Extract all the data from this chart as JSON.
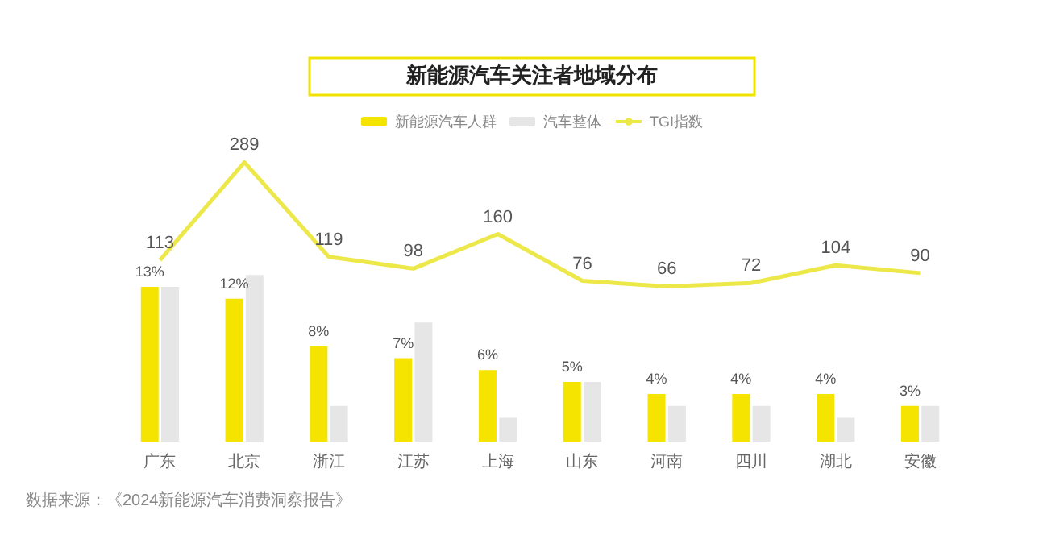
{
  "chart_data": {
    "type": "bar",
    "title": "新能源汽车关注者地域分布",
    "categories": [
      "广东",
      "北京",
      "浙江",
      "江苏",
      "上海",
      "山东",
      "河南",
      "四川",
      "湖北",
      "安徽"
    ],
    "series": [
      {
        "name": "新能源汽车人群",
        "color": "#f5e400",
        "values": [
          13,
          12,
          8,
          7,
          6,
          5,
          4,
          4,
          4,
          3
        ],
        "value_labels": [
          "13%",
          "12%",
          "8%",
          "7%",
          "6%",
          "5%",
          "4%",
          "4%",
          "4%",
          "3%"
        ]
      },
      {
        "name": "汽车整体",
        "color": "#e6e6e6",
        "values": [
          13,
          14,
          3,
          10,
          2,
          5,
          3,
          3,
          2,
          3
        ]
      },
      {
        "name": "TGI指数",
        "type": "line",
        "axis": "y2",
        "color": "#ede84a",
        "values": [
          113,
          289,
          119,
          98,
          160,
          76,
          66,
          72,
          104,
          90
        ],
        "value_labels": [
          "113",
          "289",
          "119",
          "98",
          "160",
          "76",
          "66",
          "72",
          "104",
          "90"
        ]
      }
    ],
    "legend": "top",
    "marker": "none",
    "tick_labels": "x",
    "annotations": [
      "数据来源：《2024新能源汽车消费洞察报告》"
    ]
  }
}
